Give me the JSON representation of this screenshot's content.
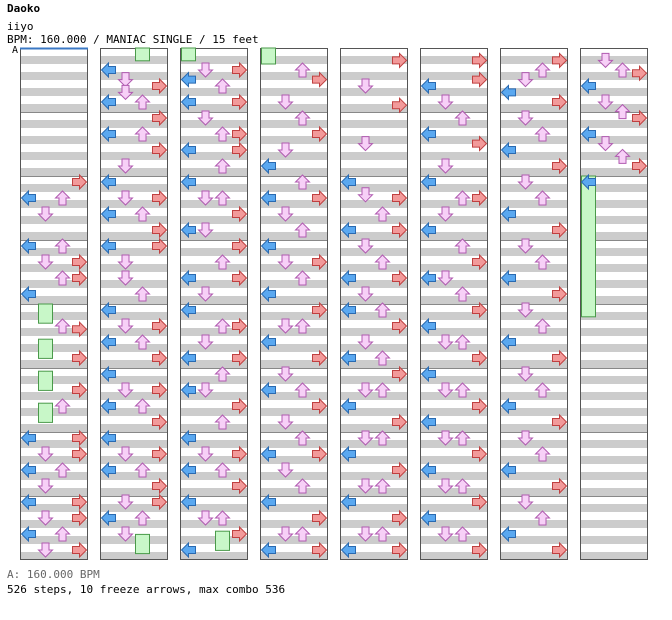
{
  "header": {
    "title": "Daoko",
    "artist": "iiyo",
    "info": "BPM: 160.000 / MANIAC SINGLE / 15 feet",
    "bpm_marker": "A"
  },
  "footer": {
    "bpm_legend": "A: 160.000 BPM",
    "stats": "526 steps, 10 freeze arrows, max combo 536"
  },
  "colors": {
    "stripe": "#cccccc",
    "measure_line": "#888888",
    "left": "#5aa8f0",
    "down": "#f7d0f7",
    "up": "#f7d0f7",
    "right": "#f29a9a",
    "freeze": "#c8f7c8"
  },
  "chart": {
    "columns": 8,
    "measures_per_column": 8,
    "freezes": [
      {
        "col": 0,
        "lane": 1,
        "start": 4.0,
        "end": 4.3
      },
      {
        "col": 0,
        "lane": 1,
        "start": 4.55,
        "end": 4.85
      },
      {
        "col": 0,
        "lane": 1,
        "start": 5.05,
        "end": 5.35
      },
      {
        "col": 0,
        "lane": 1,
        "start": 5.55,
        "end": 5.85
      },
      {
        "col": 1,
        "lane": 2,
        "start": 0.0,
        "end": 0.2
      },
      {
        "col": 1,
        "lane": 2,
        "start": 7.6,
        "end": 7.9
      },
      {
        "col": 2,
        "lane": 0,
        "start": 0.0,
        "end": 0.2
      },
      {
        "col": 2,
        "lane": 2,
        "start": 7.55,
        "end": 7.85
      },
      {
        "col": 3,
        "lane": 0,
        "start": 0.0,
        "end": 0.25
      },
      {
        "col": 7,
        "lane": 0,
        "start": 2.0,
        "end": 4.2
      }
    ],
    "notes": [
      [
        2.25,
        0
      ],
      [
        2.5,
        1
      ],
      [
        2.25,
        2
      ],
      [
        2.0,
        3
      ],
      [
        3.0,
        0
      ],
      [
        3.25,
        1
      ],
      [
        3.0,
        2
      ],
      [
        3.5,
        3
      ],
      [
        3.75,
        0
      ],
      [
        3.5,
        2
      ],
      [
        3.25,
        3
      ],
      [
        4.25,
        2
      ],
      [
        4.3,
        3
      ],
      [
        4.75,
        3
      ],
      [
        5.25,
        3
      ],
      [
        5.5,
        2
      ],
      [
        6.0,
        0
      ],
      [
        6.25,
        1
      ],
      [
        6.25,
        3
      ],
      [
        6.5,
        0
      ],
      [
        6.5,
        2
      ],
      [
        6.0,
        3
      ],
      [
        6.75,
        1
      ],
      [
        7.0,
        0
      ],
      [
        7.25,
        1
      ],
      [
        7.25,
        3
      ],
      [
        7.5,
        0
      ],
      [
        7.5,
        2
      ],
      [
        7.0,
        3
      ],
      [
        7.75,
        1
      ],
      [
        7.75,
        3
      ],
      [
        0.25,
        0
      ],
      [
        0.4,
        1
      ],
      [
        0.5,
        3
      ],
      [
        0.75,
        0
      ],
      [
        0.6,
        1
      ],
      [
        0.75,
        2
      ],
      [
        1.0,
        3
      ],
      [
        1.25,
        0
      ],
      [
        1.25,
        2
      ],
      [
        1.5,
        3
      ],
      [
        1.75,
        1
      ],
      [
        2.0,
        0
      ],
      [
        2.25,
        1
      ],
      [
        2.25,
        3
      ],
      [
        2.5,
        0
      ],
      [
        2.5,
        2
      ],
      [
        2.75,
        3
      ],
      [
        3.0,
        0
      ],
      [
        3.25,
        1
      ],
      [
        3.0,
        3
      ],
      [
        3.5,
        1
      ],
      [
        3.75,
        2
      ],
      [
        4.0,
        0
      ],
      [
        4.25,
        1
      ],
      [
        4.25,
        3
      ],
      [
        4.5,
        0
      ],
      [
        4.5,
        2
      ],
      [
        4.75,
        3
      ],
      [
        5.0,
        0
      ],
      [
        5.25,
        1
      ],
      [
        5.25,
        3
      ],
      [
        5.5,
        0
      ],
      [
        5.5,
        2
      ],
      [
        5.75,
        3
      ],
      [
        6.0,
        0
      ],
      [
        6.25,
        1
      ],
      [
        6.25,
        3
      ],
      [
        6.5,
        0
      ],
      [
        6.5,
        2
      ],
      [
        6.75,
        3
      ],
      [
        7.0,
        1
      ],
      [
        7.0,
        3
      ],
      [
        7.25,
        0
      ],
      [
        7.5,
        1
      ],
      [
        7.25,
        2
      ],
      [
        0.25,
        1
      ],
      [
        0.4,
        0
      ],
      [
        0.25,
        3
      ],
      [
        0.5,
        2
      ],
      [
        0.75,
        0
      ],
      [
        0.75,
        3
      ],
      [
        1.0,
        1
      ],
      [
        1.25,
        2
      ],
      [
        1.25,
        3
      ],
      [
        1.5,
        0
      ],
      [
        1.5,
        3
      ],
      [
        1.75,
        2
      ],
      [
        2.0,
        0
      ],
      [
        2.25,
        1
      ],
      [
        2.25,
        2
      ],
      [
        2.5,
        3
      ],
      [
        2.75,
        0
      ],
      [
        2.75,
        1
      ],
      [
        3.0,
        3
      ],
      [
        3.25,
        2
      ],
      [
        3.5,
        0
      ],
      [
        3.5,
        3
      ],
      [
        3.75,
        1
      ],
      [
        4.0,
        0
      ],
      [
        4.25,
        2
      ],
      [
        4.25,
        3
      ],
      [
        4.5,
        1
      ],
      [
        4.75,
        0
      ],
      [
        4.75,
        3
      ],
      [
        5.0,
        2
      ],
      [
        5.25,
        0
      ],
      [
        5.25,
        1
      ],
      [
        5.5,
        3
      ],
      [
        5.75,
        2
      ],
      [
        6.0,
        0
      ],
      [
        6.25,
        1
      ],
      [
        6.25,
        3
      ],
      [
        6.5,
        0
      ],
      [
        6.5,
        2
      ],
      [
        6.75,
        3
      ],
      [
        7.0,
        0
      ],
      [
        7.25,
        1
      ],
      [
        7.25,
        2
      ],
      [
        7.5,
        3
      ],
      [
        7.75,
        0
      ],
      [
        0.25,
        2
      ],
      [
        0.4,
        3
      ],
      [
        0.75,
        1
      ],
      [
        1.0,
        2
      ],
      [
        1.25,
        3
      ],
      [
        1.5,
        1
      ],
      [
        1.75,
        0
      ],
      [
        2.0,
        2
      ],
      [
        2.25,
        0
      ],
      [
        2.25,
        3
      ],
      [
        2.5,
        1
      ],
      [
        2.75,
        2
      ],
      [
        3.0,
        0
      ],
      [
        3.25,
        1
      ],
      [
        3.25,
        3
      ],
      [
        3.5,
        2
      ],
      [
        3.75,
        0
      ],
      [
        4.0,
        3
      ],
      [
        4.25,
        1
      ],
      [
        4.25,
        2
      ],
      [
        4.5,
        0
      ],
      [
        4.75,
        3
      ],
      [
        5.0,
        1
      ],
      [
        5.25,
        2
      ],
      [
        5.25,
        0
      ],
      [
        5.5,
        3
      ],
      [
        5.75,
        1
      ],
      [
        6.0,
        2
      ],
      [
        6.25,
        0
      ],
      [
        6.25,
        3
      ],
      [
        6.5,
        1
      ],
      [
        6.75,
        2
      ],
      [
        7.0,
        0
      ],
      [
        7.25,
        3
      ],
      [
        7.5,
        1
      ],
      [
        7.5,
        2
      ],
      [
        7.75,
        0
      ],
      [
        7.75,
        3
      ],
      [
        0.1,
        3
      ],
      [
        0.5,
        1
      ],
      [
        0.8,
        3
      ],
      [
        1.4,
        1
      ],
      [
        2.0,
        0
      ],
      [
        2.2,
        1
      ],
      [
        2.25,
        3
      ],
      [
        2.5,
        2
      ],
      [
        2.75,
        0
      ],
      [
        2.75,
        3
      ],
      [
        3.0,
        1
      ],
      [
        3.25,
        2
      ],
      [
        3.5,
        0
      ],
      [
        3.5,
        3
      ],
      [
        3.75,
        1
      ],
      [
        4.0,
        2
      ],
      [
        4.0,
        0
      ],
      [
        4.25,
        3
      ],
      [
        4.5,
        1
      ],
      [
        4.75,
        0
      ],
      [
        4.75,
        2
      ],
      [
        5.0,
        3
      ],
      [
        5.25,
        1
      ],
      [
        5.25,
        2
      ],
      [
        5.5,
        0
      ],
      [
        5.75,
        3
      ],
      [
        6.0,
        1
      ],
      [
        6.0,
        2
      ],
      [
        6.25,
        0
      ],
      [
        6.5,
        3
      ],
      [
        6.75,
        1
      ],
      [
        6.75,
        2
      ],
      [
        7.0,
        0
      ],
      [
        7.25,
        3
      ],
      [
        7.5,
        1
      ],
      [
        7.5,
        2
      ],
      [
        7.75,
        0
      ],
      [
        7.75,
        3
      ],
      [
        0.1,
        3
      ],
      [
        0.4,
        3
      ],
      [
        0.5,
        0
      ],
      [
        0.75,
        1
      ],
      [
        1.0,
        2
      ],
      [
        1.25,
        0
      ],
      [
        1.4,
        3
      ],
      [
        1.75,
        1
      ],
      [
        2.0,
        0
      ],
      [
        2.25,
        2
      ],
      [
        2.25,
        3
      ],
      [
        2.5,
        1
      ],
      [
        2.75,
        0
      ],
      [
        3.0,
        2
      ],
      [
        3.25,
        3
      ],
      [
        3.5,
        0
      ],
      [
        3.5,
        1
      ],
      [
        3.75,
        2
      ],
      [
        4.0,
        3
      ],
      [
        4.25,
        0
      ],
      [
        4.5,
        2
      ],
      [
        4.5,
        1
      ],
      [
        4.75,
        3
      ],
      [
        5.0,
        0
      ],
      [
        5.25,
        1
      ],
      [
        5.25,
        2
      ],
      [
        5.5,
        3
      ],
      [
        5.75,
        0
      ],
      [
        6.0,
        1
      ],
      [
        6.0,
        2
      ],
      [
        6.25,
        3
      ],
      [
        6.5,
        0
      ],
      [
        6.75,
        1
      ],
      [
        6.75,
        2
      ],
      [
        7.0,
        3
      ],
      [
        7.25,
        0
      ],
      [
        7.5,
        1
      ],
      [
        7.5,
        2
      ],
      [
        7.75,
        3
      ],
      [
        0.1,
        3
      ],
      [
        0.25,
        2
      ],
      [
        0.4,
        1
      ],
      [
        0.6,
        0
      ],
      [
        0.75,
        3
      ],
      [
        1.0,
        1
      ],
      [
        1.25,
        2
      ],
      [
        1.5,
        0
      ],
      [
        1.75,
        3
      ],
      [
        2.0,
        1
      ],
      [
        2.25,
        2
      ],
      [
        2.5,
        0
      ],
      [
        2.75,
        3
      ],
      [
        3.0,
        1
      ],
      [
        3.25,
        2
      ],
      [
        3.5,
        0
      ],
      [
        3.75,
        3
      ],
      [
        4.0,
        1
      ],
      [
        4.25,
        2
      ],
      [
        4.5,
        0
      ],
      [
        4.75,
        3
      ],
      [
        5.0,
        1
      ],
      [
        5.25,
        2
      ],
      [
        5.5,
        0
      ],
      [
        5.75,
        3
      ],
      [
        6.0,
        1
      ],
      [
        6.25,
        2
      ],
      [
        6.5,
        0
      ],
      [
        6.75,
        3
      ],
      [
        7.0,
        1
      ],
      [
        7.25,
        2
      ],
      [
        7.5,
        0
      ],
      [
        7.75,
        3
      ],
      [
        0.1,
        1
      ],
      [
        0.25,
        2
      ],
      [
        0.3,
        3
      ],
      [
        0.5,
        0
      ],
      [
        0.75,
        1
      ],
      [
        0.9,
        2
      ],
      [
        1.0,
        3
      ],
      [
        1.25,
        0
      ],
      [
        1.4,
        1
      ],
      [
        1.6,
        2
      ],
      [
        1.75,
        3
      ],
      [
        2.0,
        0
      ]
    ]
  }
}
